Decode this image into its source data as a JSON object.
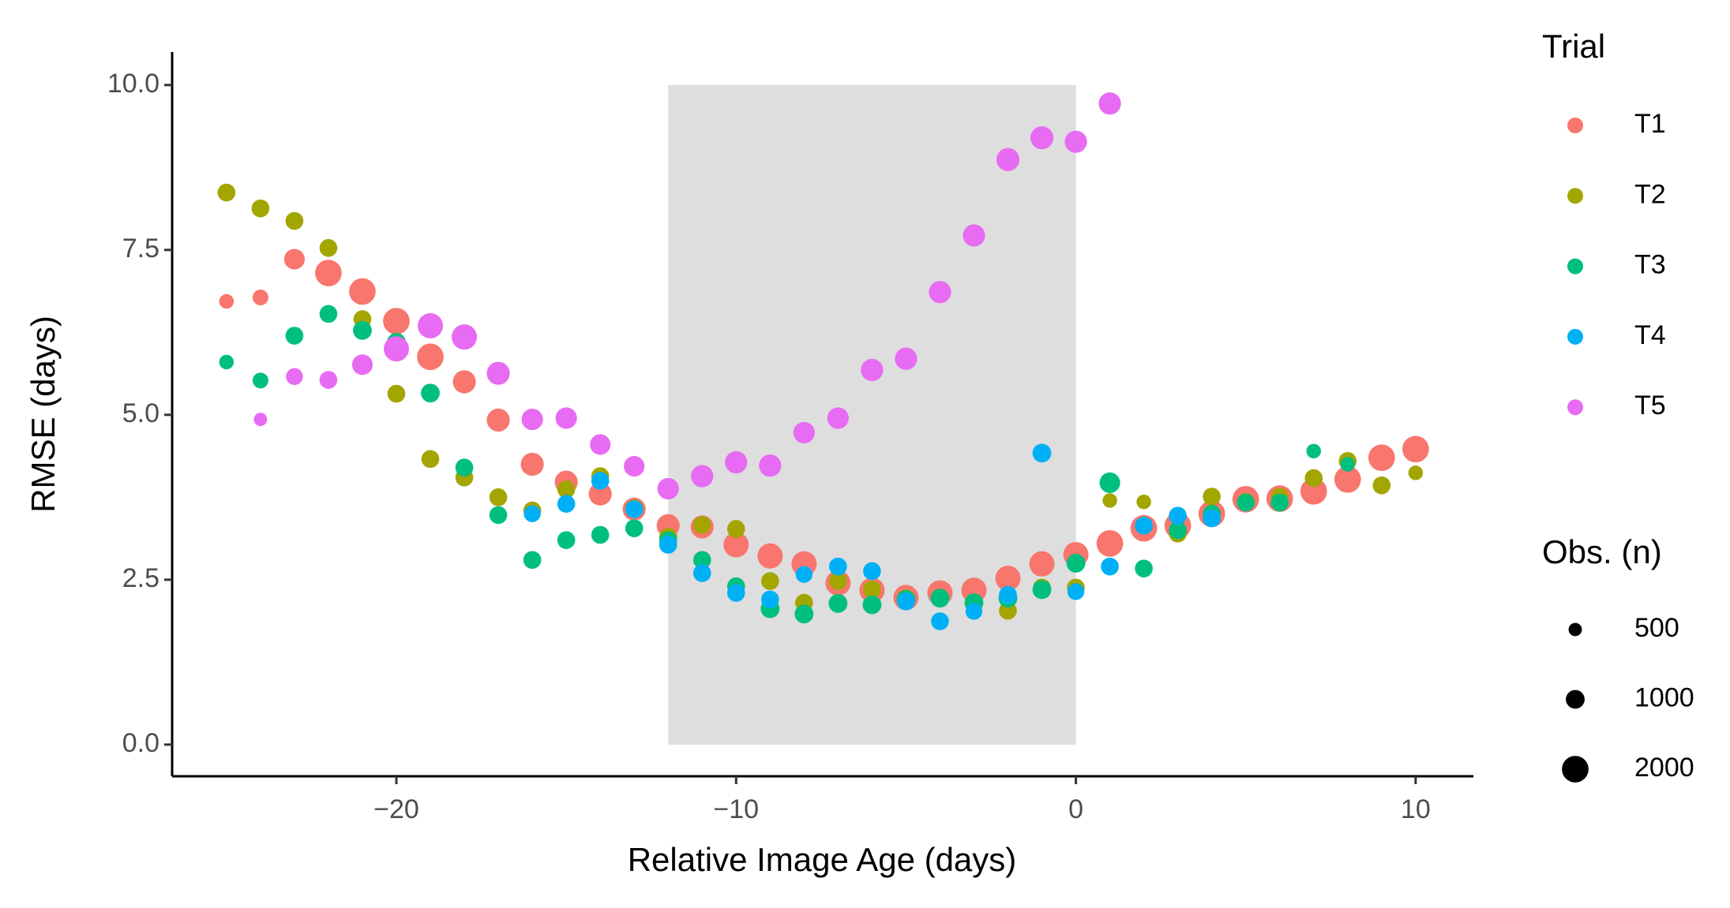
{
  "chart_data": {
    "type": "scatter",
    "x_label": "Relative Image Age (days)",
    "y_label": "RMSE (days)",
    "xlim": [
      -26.6,
      11.7
    ],
    "ylim": [
      -0.48,
      10.5
    ],
    "xticks": [
      {
        "value": -20,
        "label": "−20"
      },
      {
        "value": -10,
        "label": "−10"
      },
      0,
      10
    ],
    "yticks": [
      {
        "value": 0,
        "label": "0.0"
      },
      {
        "value": 2.5,
        "label": "2.5"
      },
      {
        "value": 5,
        "label": "5.0"
      },
      {
        "value": 7.5,
        "label": "7.5"
      },
      {
        "value": 10,
        "label": "10.0"
      }
    ],
    "shaded_region": {
      "xmin": -12,
      "xmax": 0,
      "ymin": 0,
      "ymax": 10,
      "color": "#dedede"
    },
    "legend_title": "Trial",
    "size_legend": {
      "title": "Obs. (n)",
      "values": [
        500,
        1000,
        2000
      ]
    },
    "series": [
      {
        "name": "T1",
        "color": "#F8766D",
        "x": [
          -25,
          -24,
          -23,
          -22,
          -21,
          -20,
          -19,
          -18,
          -17,
          -16,
          -15,
          -14,
          -13,
          -12,
          -11,
          -10,
          -9,
          -8,
          -7,
          -6,
          -5,
          -4,
          -3,
          -2,
          -1,
          0,
          1,
          2,
          3,
          4,
          5,
          6,
          7,
          8,
          9,
          10
        ],
        "values": [
          6.72,
          6.78,
          7.36,
          7.15,
          6.87,
          6.42,
          5.88,
          5.5,
          4.92,
          4.25,
          3.98,
          3.8,
          3.57,
          3.32,
          3.3,
          3.03,
          2.86,
          2.74,
          2.45,
          2.34,
          2.23,
          2.3,
          2.34,
          2.52,
          2.74,
          2.88,
          3.05,
          3.28,
          3.32,
          3.5,
          3.72,
          3.73,
          3.84,
          4.02,
          4.35,
          4.48
        ],
        "sizes": [
          600,
          700,
          1200,
          2000,
          2000,
          2000,
          2000,
          1500,
          1500,
          1500,
          1500,
          1500,
          1500,
          1500,
          1500,
          1800,
          1800,
          1800,
          1800,
          1800,
          1800,
          1800,
          1800,
          1800,
          1800,
          1800,
          2000,
          2000,
          2000,
          2000,
          2000,
          2000,
          2000,
          2000,
          2000,
          2000
        ]
      },
      {
        "name": "T2",
        "color": "#A3A500",
        "x": [
          -25,
          -24,
          -23,
          -22,
          -21,
          -20,
          -19,
          -18,
          -17,
          -16,
          -15,
          -14,
          -13,
          -12,
          -11,
          -10,
          -9,
          -8,
          -7,
          -6,
          -5,
          -4,
          -3,
          -2,
          -1,
          0,
          1,
          2,
          3,
          4,
          5,
          6,
          7,
          8,
          9,
          10
        ],
        "values": [
          8.37,
          8.13,
          7.94,
          7.53,
          6.45,
          5.32,
          4.33,
          4.05,
          3.75,
          3.55,
          3.87,
          4.07,
          3.58,
          3.15,
          3.33,
          3.27,
          2.48,
          2.15,
          2.48,
          2.35,
          2.22,
          2.23,
          2.16,
          2.03,
          2.38,
          2.38,
          3.7,
          3.68,
          3.2,
          3.76,
          3.68,
          3.76,
          4.04,
          4.3,
          3.93,
          4.12
        ],
        "sizes": [
          900,
          900,
          900,
          900,
          900,
          900,
          900,
          900,
          900,
          900,
          900,
          900,
          900,
          900,
          900,
          900,
          900,
          900,
          900,
          900,
          900,
          900,
          900,
          900,
          900,
          900,
          600,
          600,
          900,
          900,
          900,
          900,
          900,
          900,
          900,
          600
        ]
      },
      {
        "name": "T3",
        "color": "#00BF7D",
        "x": [
          -25,
          -24,
          -23,
          -22,
          -21,
          -20,
          -19,
          -18,
          -17,
          -16,
          -15,
          -14,
          -13,
          -12,
          -11,
          -10,
          -9,
          -8,
          -7,
          -6,
          -5,
          -4,
          -3,
          -2,
          -1,
          0,
          1,
          2,
          3,
          4,
          5,
          6,
          7,
          8
        ],
        "values": [
          5.8,
          5.52,
          6.2,
          6.53,
          6.28,
          6.1,
          5.33,
          4.2,
          3.48,
          2.8,
          3.1,
          3.18,
          3.28,
          3.1,
          2.8,
          2.4,
          2.06,
          1.98,
          2.14,
          2.12,
          2.2,
          2.22,
          2.15,
          2.22,
          2.35,
          2.75,
          3.97,
          2.67,
          3.25,
          3.5,
          3.67,
          3.67,
          4.45,
          4.25
        ],
        "sizes": [
          600,
          700,
          900,
          900,
          1000,
          1000,
          1000,
          900,
          900,
          900,
          900,
          900,
          900,
          900,
          900,
          900,
          1000,
          1000,
          1000,
          1000,
          1000,
          1000,
          1000,
          1000,
          1000,
          1000,
          1200,
          900,
          900,
          900,
          900,
          900,
          600,
          600
        ]
      },
      {
        "name": "T4",
        "color": "#00B0F6",
        "x": [
          -16,
          -15,
          -14,
          -13,
          -12,
          -11,
          -10,
          -9,
          -8,
          -7,
          -6,
          -5,
          -4,
          -3,
          -2,
          -1,
          0,
          1,
          2,
          3,
          4
        ],
        "values": [
          3.5,
          3.65,
          4.0,
          3.57,
          3.03,
          2.6,
          2.3,
          2.2,
          2.58,
          2.7,
          2.63,
          2.17,
          1.87,
          2.02,
          2.27,
          4.42,
          2.32,
          2.7,
          3.32,
          3.47,
          3.43
        ],
        "sizes": [
          800,
          900,
          900,
          900,
          900,
          900,
          900,
          900,
          800,
          900,
          900,
          900,
          900,
          800,
          900,
          1000,
          800,
          900,
          900,
          900,
          900
        ]
      },
      {
        "name": "T5",
        "color": "#E76BF3",
        "x": [
          -24,
          -23,
          -22,
          -21,
          -20,
          -19,
          -18,
          -17,
          -16,
          -15,
          -14,
          -13,
          -12,
          -11,
          -10,
          -9,
          -8,
          -7,
          -6,
          -5,
          -4,
          -3,
          -2,
          -1,
          0,
          1
        ],
        "values": [
          4.93,
          5.58,
          5.53,
          5.76,
          6.0,
          6.35,
          6.18,
          5.63,
          4.93,
          4.95,
          4.55,
          4.22,
          3.88,
          4.07,
          4.28,
          4.23,
          4.73,
          4.95,
          5.68,
          5.85,
          6.86,
          7.72,
          8.87,
          9.2,
          9.14,
          9.72
        ],
        "sizes": [
          500,
          800,
          900,
          1200,
          1800,
          1800,
          1800,
          1500,
          1300,
          1300,
          1200,
          1200,
          1300,
          1400,
          1400,
          1400,
          1300,
          1300,
          1400,
          1400,
          1400,
          1400,
          1500,
          1500,
          1400,
          1400
        ]
      }
    ]
  }
}
